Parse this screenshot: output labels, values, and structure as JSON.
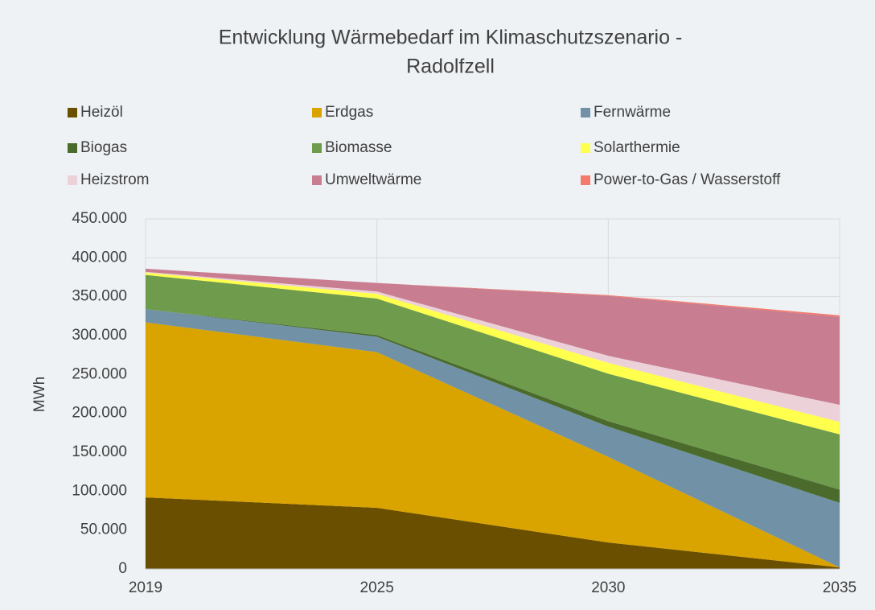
{
  "chart_data": {
    "type": "stacked_area",
    "title": [
      "Entwicklung Wärmebedarf im Klimaschutzszenario -",
      "Radolfzell"
    ],
    "ylabel": "MWh",
    "categories": [
      "2019",
      "2025",
      "2030",
      "2035"
    ],
    "series": [
      {
        "name": "Heizöl",
        "color": "#6b4f00",
        "values": [
          92000,
          78600,
          34000,
          2000
        ]
      },
      {
        "name": "Erdgas",
        "color": "#d9a300",
        "values": [
          225000,
          200000,
          110000,
          0
        ]
      },
      {
        "name": "Fernwärme",
        "color": "#7192a6",
        "values": [
          17000,
          20000,
          39000,
          83000
        ]
      },
      {
        "name": "Biogas",
        "color": "#4a6b2c",
        "values": [
          0,
          2000,
          7000,
          17000
        ]
      },
      {
        "name": "Biomasse",
        "color": "#6f9b4c",
        "values": [
          44000,
          47000,
          61000,
          71000
        ]
      },
      {
        "name": "Solarthermie",
        "color": "#ffff4d",
        "values": [
          3000,
          6000,
          14000,
          16000
        ]
      },
      {
        "name": "Heizstrom",
        "color": "#edd1d9",
        "values": [
          1000,
          3000,
          9000,
          22000
        ]
      },
      {
        "name": "Umweltwärme",
        "color": "#c87d91",
        "values": [
          4000,
          11000,
          77000,
          113000
        ]
      },
      {
        "name": "Power-to-Gas / Wasserstoff",
        "color": "#f47a6b",
        "values": [
          0,
          0,
          1000,
          2000
        ]
      }
    ],
    "ylim": [
      0,
      450000
    ],
    "yticks": [
      0,
      {
        "value": 50000,
        "label": "50.000"
      },
      {
        "value": 100000,
        "label": "100.000"
      },
      {
        "value": 150000,
        "label": "150.000"
      },
      {
        "value": 200000,
        "label": "200.000"
      },
      {
        "value": 250000,
        "label": "250.000"
      },
      {
        "value": 300000,
        "label": "300.000"
      },
      {
        "value": 350000,
        "label": "350.000"
      },
      {
        "value": 400000,
        "label": "400.000"
      },
      {
        "value": 450000,
        "label": "450.000"
      }
    ],
    "grid": true,
    "legend": "top"
  }
}
